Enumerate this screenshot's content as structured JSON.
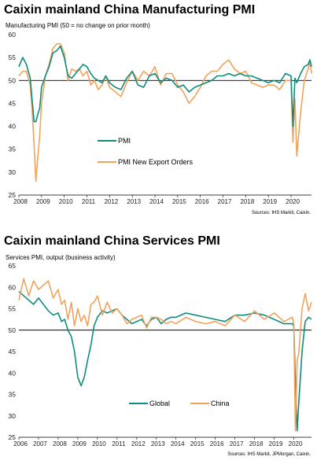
{
  "colors": {
    "primary": "#0e8d7e",
    "secondary": "#f2a35b",
    "axis": "#000000",
    "tick_label": "#222222"
  },
  "chart_data": [
    {
      "type": "line",
      "title": "Caixin mainland China Manufacturing PMI",
      "subtitle": "Manufacturing  PMI (50 = no change on prior month)",
      "source": "Sources: IHS Markit, Caixin.",
      "xlim": [
        2008,
        2020.9
      ],
      "ylim": [
        25,
        60
      ],
      "baseline": 50,
      "xticks": [
        2008,
        2009,
        2010,
        2011,
        2012,
        2013,
        2014,
        2015,
        2016,
        2017,
        2018,
        2019,
        2020
      ],
      "yticks": [
        25,
        30,
        35,
        40,
        45,
        50,
        55,
        60
      ],
      "legend_position": "center",
      "series": [
        {
          "name": "PMI",
          "color": "#0e8d7e",
          "x": [
            2008.0,
            2008.17,
            2008.33,
            2008.5,
            2008.58,
            2008.67,
            2008.75,
            2008.83,
            2008.92,
            2009.0,
            2009.17,
            2009.33,
            2009.5,
            2009.67,
            2009.83,
            2010.0,
            2010.17,
            2010.33,
            2010.5,
            2010.67,
            2010.83,
            2011.0,
            2011.17,
            2011.33,
            2011.5,
            2011.67,
            2011.83,
            2012.0,
            2012.25,
            2012.5,
            2012.75,
            2013.0,
            2013.25,
            2013.5,
            2013.75,
            2014.0,
            2014.25,
            2014.5,
            2014.75,
            2015.0,
            2015.25,
            2015.5,
            2015.75,
            2016.0,
            2016.25,
            2016.5,
            2016.75,
            2017.0,
            2017.25,
            2017.5,
            2017.75,
            2018.0,
            2018.25,
            2018.5,
            2018.75,
            2019.0,
            2019.25,
            2019.5,
            2019.75,
            2020.0,
            2020.08,
            2020.17,
            2020.25,
            2020.42,
            2020.58,
            2020.75,
            2020.83,
            2020.9
          ],
          "values": [
            53.0,
            55.0,
            53.5,
            50.5,
            46.0,
            41.0,
            41.0,
            42.5,
            44.0,
            48.5,
            51.0,
            53.0,
            56.0,
            56.5,
            57.5,
            55.0,
            51.0,
            50.5,
            51.5,
            52.5,
            53.5,
            53.0,
            51.5,
            50.5,
            50.0,
            49.5,
            51.0,
            49.5,
            48.5,
            48.0,
            50.5,
            52.0,
            49.0,
            48.5,
            51.0,
            51.5,
            49.5,
            50.5,
            50.0,
            48.5,
            49.0,
            47.5,
            48.5,
            49.0,
            49.5,
            50.0,
            51.0,
            51.0,
            51.5,
            51.0,
            51.5,
            51.0,
            51.0,
            50.5,
            50.0,
            49.5,
            50.0,
            49.5,
            51.5,
            51.0,
            40.0,
            50.5,
            49.5,
            51.5,
            53.0,
            53.5,
            54.5,
            53.0
          ]
        },
        {
          "name": "PMI New Export Orders",
          "color": "#f2a35b",
          "x": [
            2008.0,
            2008.17,
            2008.33,
            2008.5,
            2008.58,
            2008.67,
            2008.75,
            2008.83,
            2008.92,
            2009.0,
            2009.17,
            2009.33,
            2009.5,
            2009.67,
            2009.83,
            2010.0,
            2010.17,
            2010.33,
            2010.5,
            2010.67,
            2010.83,
            2011.0,
            2011.17,
            2011.33,
            2011.5,
            2011.67,
            2011.83,
            2012.0,
            2012.25,
            2012.5,
            2012.75,
            2013.0,
            2013.25,
            2013.5,
            2013.75,
            2014.0,
            2014.25,
            2014.5,
            2014.75,
            2015.0,
            2015.25,
            2015.5,
            2015.75,
            2016.0,
            2016.25,
            2016.5,
            2016.75,
            2017.0,
            2017.25,
            2017.5,
            2017.75,
            2018.0,
            2018.25,
            2018.5,
            2018.75,
            2019.0,
            2019.25,
            2019.5,
            2019.75,
            2020.0,
            2020.08,
            2020.17,
            2020.25,
            2020.42,
            2020.58,
            2020.75,
            2020.83,
            2020.9
          ],
          "values": [
            51.0,
            52.0,
            52.0,
            49.0,
            44.0,
            36.0,
            28.0,
            33.0,
            38.0,
            45.0,
            51.0,
            53.5,
            57.0,
            58.0,
            58.0,
            56.0,
            50.0,
            52.5,
            52.0,
            52.5,
            51.0,
            52.0,
            49.0,
            50.0,
            48.0,
            49.0,
            51.0,
            48.5,
            47.5,
            46.5,
            49.5,
            52.0,
            50.0,
            52.0,
            51.0,
            53.0,
            49.0,
            51.5,
            51.5,
            49.0,
            47.5,
            45.0,
            46.5,
            48.5,
            51.0,
            52.0,
            52.0,
            53.5,
            54.5,
            52.5,
            51.5,
            52.0,
            49.5,
            49.0,
            48.5,
            49.0,
            49.0,
            48.0,
            50.0,
            50.0,
            36.5,
            46.0,
            33.5,
            43.0,
            50.0,
            52.5,
            54.0,
            51.5
          ]
        }
      ]
    },
    {
      "type": "line",
      "title": "Caixin mainland China Services PMI",
      "subtitle": "Services  PMI, output  (business  activity)",
      "source": "Sources: IHS Markit, JPMorgan, Caixin.",
      "xlim": [
        2006,
        2020.9
      ],
      "ylim": [
        25,
        65
      ],
      "baseline": 50,
      "xticks": [
        2006,
        2007,
        2008,
        2009,
        2010,
        2011,
        2012,
        2013,
        2014,
        2015,
        2016,
        2017,
        2018,
        2019,
        2020
      ],
      "yticks": [
        25,
        30,
        35,
        40,
        45,
        50,
        55,
        60,
        65
      ],
      "legend_position": "bottom-center",
      "series": [
        {
          "name": "Global",
          "color": "#0e8d7e",
          "x": [
            2006.0,
            2006.25,
            2006.5,
            2006.75,
            2007.0,
            2007.25,
            2007.5,
            2007.75,
            2008.0,
            2008.17,
            2008.33,
            2008.5,
            2008.67,
            2008.83,
            2009.0,
            2009.17,
            2009.33,
            2009.5,
            2009.67,
            2009.83,
            2010.0,
            2010.25,
            2010.5,
            2010.75,
            2011.0,
            2011.25,
            2011.5,
            2011.75,
            2012.0,
            2012.25,
            2012.5,
            2012.75,
            2013.0,
            2013.25,
            2013.5,
            2013.75,
            2014.0,
            2014.5,
            2015.0,
            2015.5,
            2016.0,
            2016.5,
            2017.0,
            2017.5,
            2018.0,
            2018.5,
            2019.0,
            2019.5,
            2019.92,
            2020.0,
            2020.08,
            2020.17,
            2020.25,
            2020.42,
            2020.58,
            2020.75,
            2020.9
          ],
          "values": [
            59.0,
            58.0,
            57.0,
            56.0,
            57.5,
            56.0,
            54.5,
            53.5,
            54.0,
            52.0,
            52.5,
            50.0,
            48.5,
            45.0,
            39.0,
            37.0,
            39.0,
            43.0,
            46.5,
            51.0,
            53.0,
            54.5,
            54.0,
            54.5,
            55.0,
            53.5,
            52.5,
            51.5,
            52.0,
            52.5,
            51.0,
            52.5,
            53.0,
            51.5,
            52.5,
            53.0,
            53.0,
            54.0,
            53.5,
            53.0,
            52.5,
            52.0,
            53.5,
            53.5,
            54.0,
            53.5,
            52.5,
            51.5,
            51.5,
            51.0,
            38.0,
            26.5,
            33.0,
            45.0,
            52.0,
            53.0,
            52.5
          ]
        },
        {
          "name": "China",
          "color": "#f2a35b",
          "x": [
            2006.0,
            2006.25,
            2006.5,
            2006.75,
            2007.0,
            2007.25,
            2007.5,
            2007.75,
            2008.0,
            2008.17,
            2008.33,
            2008.5,
            2008.67,
            2008.83,
            2009.0,
            2009.17,
            2009.33,
            2009.5,
            2009.67,
            2009.83,
            2010.0,
            2010.25,
            2010.5,
            2010.75,
            2011.0,
            2011.25,
            2011.5,
            2011.75,
            2012.0,
            2012.25,
            2012.5,
            2012.75,
            2013.0,
            2013.25,
            2013.5,
            2013.75,
            2014.0,
            2014.5,
            2015.0,
            2015.5,
            2016.0,
            2016.5,
            2017.0,
            2017.5,
            2018.0,
            2018.5,
            2019.0,
            2019.5,
            2019.92,
            2020.0,
            2020.08,
            2020.17,
            2020.25,
            2020.42,
            2020.58,
            2020.75,
            2020.9
          ],
          "values": [
            57.0,
            62.0,
            58.0,
            61.5,
            59.5,
            60.5,
            61.5,
            57.5,
            59.5,
            56.0,
            57.0,
            52.5,
            56.5,
            51.0,
            55.0,
            52.0,
            53.5,
            51.0,
            56.0,
            56.5,
            58.0,
            53.5,
            56.5,
            54.0,
            55.0,
            53.5,
            51.5,
            52.5,
            53.0,
            53.5,
            50.5,
            53.0,
            53.0,
            52.5,
            51.5,
            52.0,
            51.5,
            53.0,
            52.0,
            51.5,
            52.0,
            51.0,
            53.5,
            52.0,
            54.5,
            52.5,
            54.0,
            52.0,
            53.0,
            51.5,
            26.5,
            43.0,
            44.5,
            55.0,
            58.5,
            54.5,
            56.5
          ]
        }
      ]
    }
  ]
}
